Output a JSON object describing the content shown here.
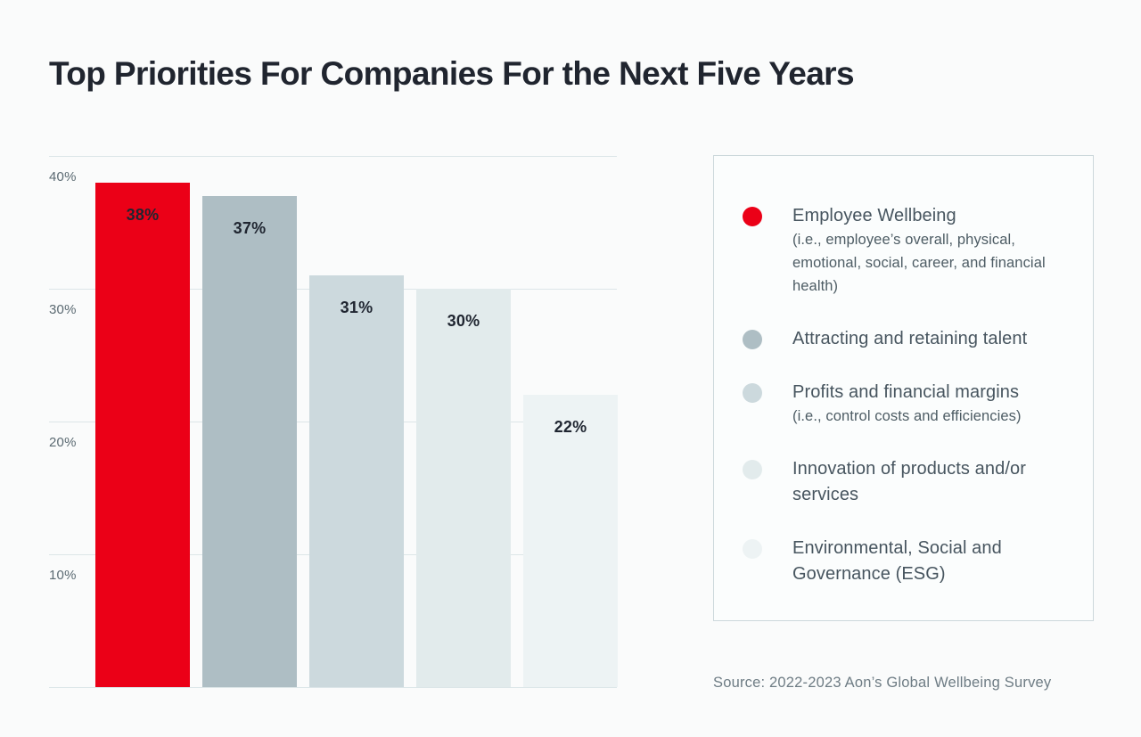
{
  "page": {
    "title": "Top Priorities For Companies For the Next Five Years",
    "source": "Source: 2022-2023 Aon’s Global Wellbeing Survey",
    "background": "#fafbfb"
  },
  "chart_data": {
    "type": "bar",
    "title": "Top Priorities For Companies For the Next Five Years",
    "categories": [
      "Employee Wellbeing",
      "Attracting and retaining talent",
      "Profits and financial margins",
      "Innovation of products and/or services",
      "Environmental, Social and Governance (ESG)"
    ],
    "values": [
      38,
      37,
      31,
      30,
      22
    ],
    "value_labels": [
      "38%",
      "37%",
      "31%",
      "30%",
      "22%"
    ],
    "colors": [
      "#eb0017",
      "#aebec4",
      "#ccd9dd",
      "#e2ebec",
      "#edf3f4"
    ],
    "xlabel": "",
    "ylabel": "",
    "ylim": [
      0,
      40
    ],
    "yticks": [
      "40%",
      "30%",
      "20%",
      "10%"
    ],
    "grid": true,
    "legend_position": "right"
  },
  "legend": {
    "items": [
      {
        "label": "Employee Wellbeing",
        "sublabel": "(i.e., employee’s overall, physical, emotional, social, career, and financial health)",
        "color": "#eb0017"
      },
      {
        "label": "Attracting and retaining talent",
        "sublabel": "",
        "color": "#aebec4"
      },
      {
        "label": "Profits and financial margins",
        "sublabel": "(i.e., control costs and efficiencies)",
        "color": "#ccd9dd"
      },
      {
        "label": "Innovation of products and/or services",
        "sublabel": "",
        "color": "#e2ebec"
      },
      {
        "label": "Environmental, Social and Governance (ESG)",
        "sublabel": "",
        "color": "#edf3f4"
      }
    ]
  }
}
